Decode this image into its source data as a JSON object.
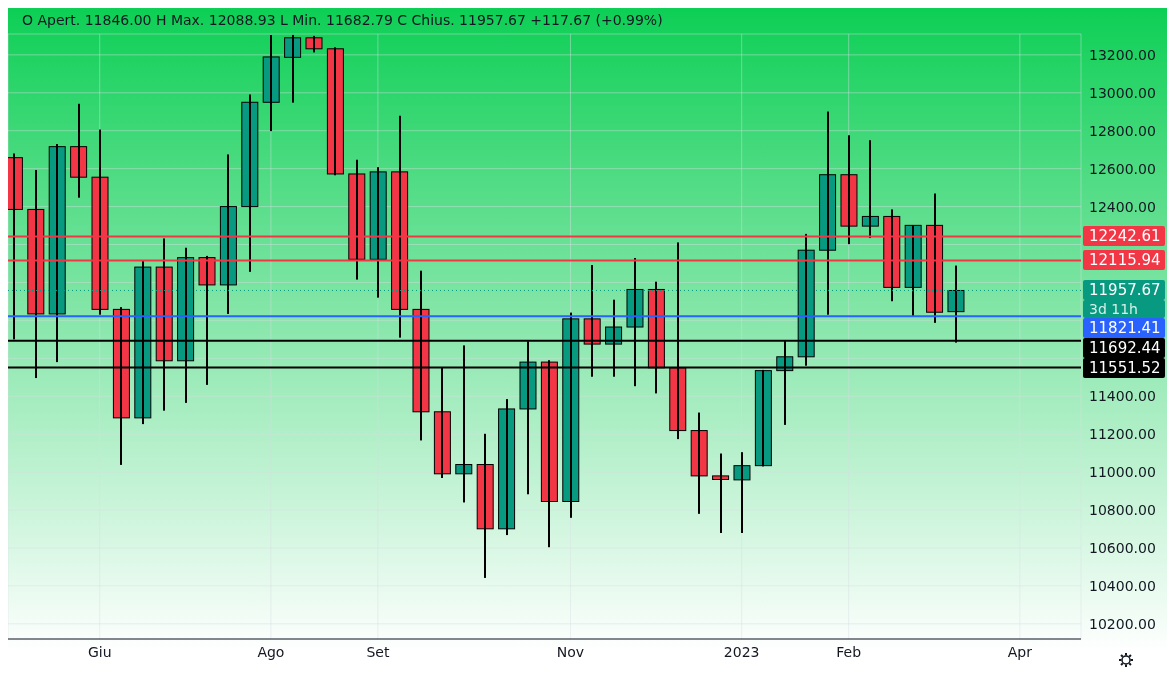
{
  "chart_data": {
    "type": "candlestick",
    "subtitle": "O Apert. 11846.00 H Max. 12088.93 L Min. 11682.79 C Chius. 11957.67 +117.67 (+0.99%)",
    "x": [
      "2022-05-09",
      "2022-05-16",
      "2022-05-23",
      "2022-05-30",
      "2022-06-06",
      "2022-06-13",
      "2022-06-20",
      "2022-06-27",
      "2022-07-04",
      "2022-07-11",
      "2022-07-18",
      "2022-07-25",
      "2022-08-01",
      "2022-08-08",
      "2022-08-15",
      "2022-08-22",
      "2022-08-29",
      "2022-09-05",
      "2022-09-12",
      "2022-09-19",
      "2022-09-26",
      "2022-10-03",
      "2022-10-10",
      "2022-10-17",
      "2022-10-24",
      "2022-10-31",
      "2022-11-07",
      "2022-11-14",
      "2022-11-21",
      "2022-11-28",
      "2022-12-05",
      "2022-12-12",
      "2022-12-19",
      "2022-12-26",
      "2023-01-02",
      "2023-01-09",
      "2023-01-16",
      "2023-01-23",
      "2023-01-30",
      "2023-02-06",
      "2023-02-13",
      "2023-02-20",
      "2023-02-27",
      "2023-03-06",
      "2023-03-13"
    ],
    "ohlc": [
      [
        12658,
        12680,
        11700,
        12385
      ],
      [
        12385,
        12593,
        11496,
        11834
      ],
      [
        11834,
        12730,
        11580,
        12716
      ],
      [
        12716,
        12942,
        12447,
        12555
      ],
      [
        12555,
        12806,
        11830,
        11858
      ],
      [
        11858,
        11870,
        11038,
        11286
      ],
      [
        11286,
        12116,
        11253,
        12081
      ],
      [
        12081,
        12232,
        11324,
        11587
      ],
      [
        11587,
        12183,
        11365,
        12131
      ],
      [
        12131,
        12140,
        11460,
        11987
      ],
      [
        11987,
        12675,
        11834,
        12400
      ],
      [
        12400,
        12991,
        12056,
        12950
      ],
      [
        12950,
        13305,
        12798,
        13189
      ],
      [
        13187,
        13305,
        12948,
        13290
      ],
      [
        13290,
        13300,
        13213,
        13232
      ],
      [
        13232,
        13240,
        12565,
        12572
      ],
      [
        12572,
        12647,
        12015,
        12122
      ],
      [
        12122,
        12608,
        11920,
        12583
      ],
      [
        12583,
        12879,
        11709,
        11858
      ],
      [
        11858,
        12062,
        11167,
        11318
      ],
      [
        11318,
        11550,
        10969,
        10991
      ],
      [
        10991,
        11668,
        10840,
        11040
      ],
      [
        11040,
        11202,
        10442,
        10701
      ],
      [
        10701,
        11385,
        10668,
        11333
      ],
      [
        11333,
        11690,
        10883,
        11580
      ],
      [
        11580,
        11590,
        10604,
        10845
      ],
      [
        10845,
        11841,
        10759,
        11808
      ],
      [
        11808,
        12092,
        11503,
        11675
      ],
      [
        11675,
        11909,
        11503,
        11765
      ],
      [
        11765,
        12129,
        11453,
        11963
      ],
      [
        11963,
        12004,
        11415,
        11550
      ],
      [
        11550,
        12211,
        11174,
        11219
      ],
      [
        11219,
        11314,
        10780,
        10980
      ],
      [
        10980,
        11098,
        10679,
        10961
      ],
      [
        10959,
        11105,
        10679,
        11034
      ],
      [
        11034,
        11539,
        11030,
        11535
      ],
      [
        11535,
        11696,
        11249,
        11608
      ],
      [
        11608,
        12256,
        11561,
        12170
      ],
      [
        12170,
        12901,
        11830,
        12568
      ],
      [
        12568,
        12776,
        12202,
        12297
      ],
      [
        12297,
        12750,
        12234,
        12348
      ],
      [
        12348,
        12385,
        11901,
        11974
      ],
      [
        11974,
        12303,
        11819,
        12301
      ],
      [
        12301,
        12469,
        11787,
        11843
      ],
      [
        11846,
        12088.93,
        11682.79,
        11957.67
      ]
    ],
    "colors": [
      "#f23645",
      "#f23645",
      "#089981",
      "#f23645",
      "#f23645",
      "#f23645",
      "#089981",
      "#f23645",
      "#089981",
      "#f23645",
      "#089981",
      "#089981",
      "#089981",
      "#089981",
      "#f23645",
      "#f23645",
      "#f23645",
      "#089981",
      "#f23645",
      "#f23645",
      "#f23645",
      "#089981",
      "#f23645",
      "#089981",
      "#089981",
      "#f23645",
      "#089981",
      "#f23645",
      "#089981",
      "#089981",
      "#f23645",
      "#f23645",
      "#f23645",
      "#f23645",
      "#089981",
      "#089981",
      "#089981",
      "#089981",
      "#089981",
      "#f23645",
      "#089981",
      "#f23645",
      "#089981",
      "#f23645",
      "#089981"
    ],
    "xlim": [
      "2022-05-07",
      "2023-04-23"
    ],
    "xticks": [
      {
        "value": "2022-06-06",
        "label": "Giu"
      },
      {
        "value": "2022-08-01",
        "label": "Ago"
      },
      {
        "value": "2022-09-05",
        "label": "Set"
      },
      {
        "value": "2022-11-07",
        "label": "Nov"
      },
      {
        "value": "2023-01-02",
        "label": "2023"
      },
      {
        "value": "2023-02-06",
        "label": "Feb"
      },
      {
        "value": "2023-04-03",
        "label": "Apr"
      }
    ],
    "ylim": [
      10120,
      13310
    ],
    "yticks": [
      {
        "value": 10200,
        "label": "10200.00"
      },
      {
        "value": 10400,
        "label": "10400.00"
      },
      {
        "value": 10600,
        "label": "10600.00"
      },
      {
        "value": 10800,
        "label": "10800.00"
      },
      {
        "value": 11000,
        "label": "11000.00"
      },
      {
        "value": 11200,
        "label": "11200.00"
      },
      {
        "value": 11400,
        "label": "11400.00"
      },
      {
        "value": 11600,
        "label": null
      },
      {
        "value": 11800,
        "label": null
      },
      {
        "value": 12000,
        "label": null
      },
      {
        "value": 12200,
        "label": null
      },
      {
        "value": 12400,
        "label": "12400.00"
      },
      {
        "value": 12600,
        "label": "12600.00"
      },
      {
        "value": 12800,
        "label": "12800.00"
      },
      {
        "value": 13000,
        "label": "13000.00"
      },
      {
        "value": 13200,
        "label": "13200.00"
      }
    ],
    "grid": true,
    "ref_lines": [
      {
        "axis": "y",
        "value": 12242.61,
        "label": "12242.61",
        "color": "#f23645"
      },
      {
        "axis": "y",
        "value": 12115.94,
        "label": "12115.94",
        "color": "#f23645"
      },
      {
        "axis": "y",
        "value": 11957.67,
        "label": "11957.67",
        "color": "#089981",
        "line_style": "dotted"
      },
      {
        "axis": "y",
        "value": 11821.41,
        "label": "11821.41",
        "color": "#2962ff"
      },
      {
        "axis": "y",
        "value": 11692.44,
        "label": "11692.44",
        "color": "#000000"
      },
      {
        "axis": "y",
        "value": 11551.52,
        "label": "11551.52",
        "color": "#000000"
      }
    ],
    "annotations": [
      "3d 11h"
    ]
  }
}
